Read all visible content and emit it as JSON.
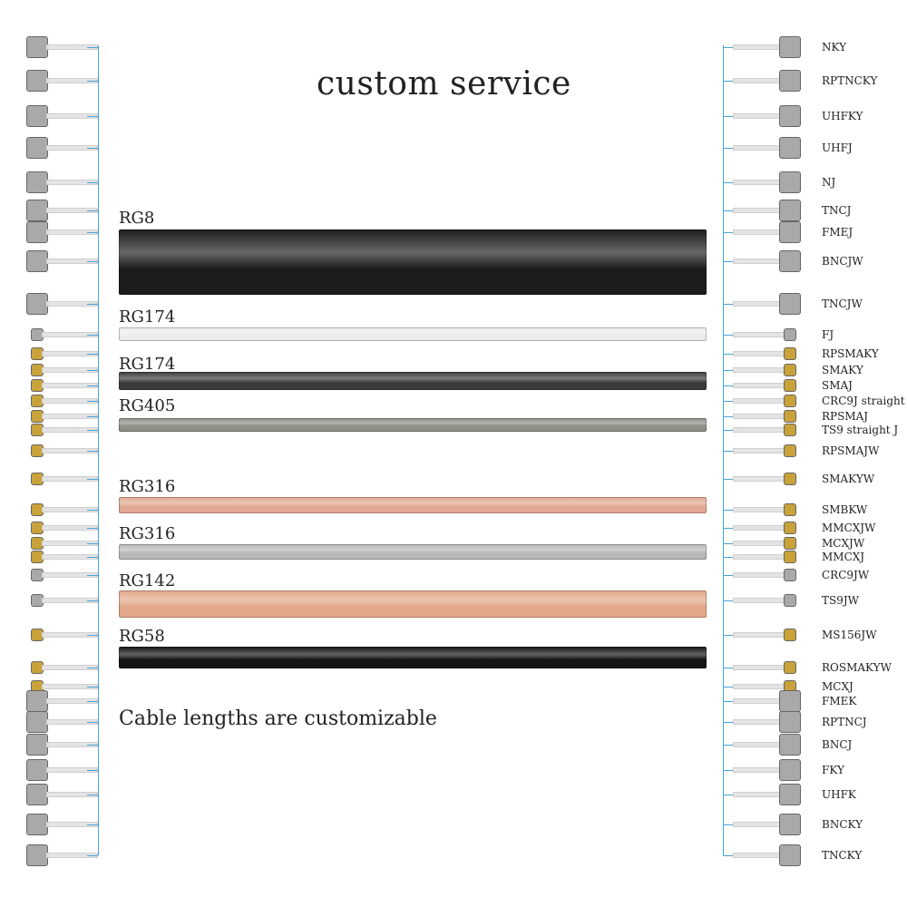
{
  "title": "custom service",
  "footer": "Cable lengths are customizable",
  "cables": [
    {
      "label": "RG8",
      "color": "#1c1c1c"
    },
    {
      "label": "RG174",
      "color": "#ececec"
    },
    {
      "label": "RG174",
      "color": "#3a3a3a"
    },
    {
      "label": "RG405",
      "color": "#8e8e86"
    },
    {
      "label": "RG316",
      "color": "#e0a890"
    },
    {
      "label": "RG316",
      "color": "#b8b8b8"
    },
    {
      "label": "RG142",
      "color": "#e2a88a"
    },
    {
      "label": "RG58",
      "color": "#151515"
    }
  ],
  "connectors": [
    "NKY",
    "RPTNCKY",
    "UHFKY",
    "UHFJ",
    "NJ",
    "TNCJ",
    "FMEJ",
    "BNCJW",
    "TNCJW",
    "FJ",
    "RPSMAKY",
    "SMAKY",
    "SMAJ",
    "CRC9J straight",
    "RPSMAJ",
    "TS9 straight J",
    "RPSMAJW",
    "SMAKYW",
    "SMBKW",
    "MMCXJW",
    "MCXJW",
    "MMCXJ",
    "CRC9JW",
    "TS9JW",
    "MS156JW",
    "ROSMAKYW",
    "MCXJ",
    "FMEK",
    "RPTNCJ",
    "BNCJ",
    "FKY",
    "UHFK",
    "BNCKY",
    "TNCKY"
  ],
  "colors": {
    "bracket": "#4aa3d8",
    "silver": "#a9a9a9",
    "gold": "#c9a23a"
  }
}
